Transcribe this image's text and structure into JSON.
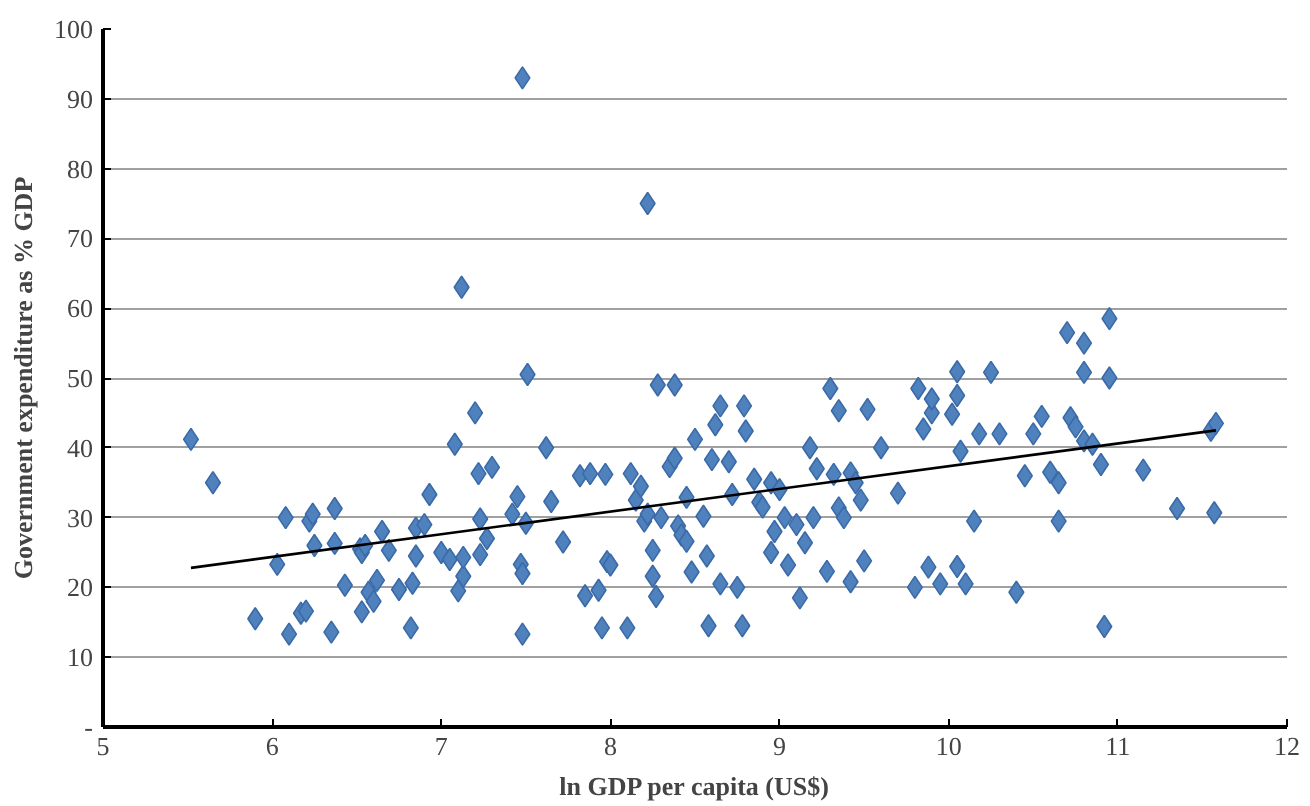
{
  "chart_data": {
    "type": "scatter",
    "xlabel": "ln GDP per capita (US$)",
    "ylabel": "Government expenditure as % GDP",
    "xlim": [
      5,
      12
    ],
    "xticks": [
      5,
      6,
      7,
      8,
      9,
      10,
      11,
      12
    ],
    "ylim": [
      0,
      100
    ],
    "yticks": [
      {
        "value": 0,
        "label": "-"
      },
      10,
      20,
      30,
      40,
      50,
      60,
      70,
      80,
      90,
      100
    ],
    "grid": "y",
    "series": [
      {
        "marker": "diamond",
        "color": "#4f81bd",
        "x": [
          5.52,
          5.65,
          5.9,
          6.03,
          6.08,
          6.1,
          6.17,
          6.2,
          6.22,
          6.24,
          6.25,
          6.35,
          6.37,
          6.37,
          6.43,
          6.52,
          6.53,
          6.53,
          6.55,
          6.57,
          6.6,
          6.62,
          6.65,
          6.69,
          6.75,
          6.82,
          6.83,
          6.85,
          6.85,
          6.9,
          6.93,
          7.0,
          7.05,
          7.08,
          7.1,
          7.13,
          7.13,
          7.2,
          7.22,
          7.23,
          7.23,
          7.27,
          7.3,
          7.42,
          7.45,
          7.47,
          7.48,
          7.48,
          7.5,
          7.51,
          7.62,
          7.65,
          7.72,
          7.82,
          7.85,
          7.88,
          7.93,
          7.95,
          7.97,
          7.98,
          8.0,
          8.1,
          8.12,
          8.15,
          8.18,
          8.2,
          8.22,
          8.25,
          8.25,
          8.27,
          8.28,
          8.3,
          8.38,
          8.35,
          8.38,
          8.4,
          8.42,
          8.45,
          8.45,
          8.48,
          8.5,
          8.55,
          8.57,
          8.58,
          8.6,
          8.62,
          8.65,
          8.65,
          8.7,
          8.72,
          8.75,
          8.78,
          8.79,
          8.8,
          8.85,
          8.88,
          8.9,
          8.95,
          8.95,
          8.97,
          9.0,
          9.03,
          9.05,
          9.1,
          9.12,
          9.15,
          9.18,
          9.2,
          9.22,
          9.28,
          9.3,
          9.32,
          9.35,
          9.35,
          9.38,
          9.42,
          9.42,
          9.45,
          9.48,
          9.5,
          9.52,
          9.6,
          9.7,
          9.8,
          9.82,
          9.85,
          9.88,
          9.9,
          9.9,
          9.95,
          10.05,
          10.07,
          10.15,
          10.18,
          10.25,
          10.3,
          10.4,
          10.45,
          10.5,
          10.55,
          10.6,
          10.65,
          10.65,
          10.7,
          10.72,
          10.75,
          10.8,
          10.8,
          10.8,
          10.85,
          10.9,
          10.92,
          10.95,
          10.95,
          11.15,
          11.35,
          11.55,
          11.58,
          11.57,
          7.12,
          8.22,
          7.48,
          10.05,
          10.02,
          10.1,
          10.05
        ],
        "values": [
          41.2,
          35,
          15.5,
          23.3,
          30,
          13.3,
          16.3,
          16.6,
          29.5,
          30.5,
          26,
          13.6,
          31.3,
          26.3,
          20.3,
          25.5,
          25,
          16.5,
          26,
          19.3,
          18,
          21,
          28,
          25.3,
          19.7,
          14.2,
          20.6,
          24.5,
          28.5,
          29,
          33.3,
          25,
          24,
          40.5,
          19.5,
          21.6,
          24.3,
          45,
          36.3,
          29.8,
          24.7,
          27,
          37.2,
          30.5,
          33,
          23.3,
          13.3,
          22,
          29.2,
          50.5,
          40,
          32.3,
          26.5,
          36,
          18.8,
          36.3,
          19.6,
          14.2,
          36.2,
          23.7,
          23.2,
          14.2,
          36.3,
          32.5,
          34.5,
          29.5,
          30.5,
          25.3,
          21.6,
          18.7,
          49,
          30,
          49,
          37.3,
          38.5,
          28.8,
          27.5,
          32.9,
          26.6,
          22.2,
          41.2,
          30.2,
          24.5,
          14.5,
          38.3,
          43.3,
          46,
          20.5,
          38,
          33.3,
          20,
          14.5,
          46,
          42.4,
          35.5,
          32.2,
          31.5,
          25,
          35,
          28,
          34,
          30,
          23.2,
          29,
          18.5,
          26.4,
          40,
          30,
          37,
          22.3,
          48.5,
          36.2,
          45.3,
          31.4,
          30,
          20.8,
          36.4,
          35,
          32.5,
          23.8,
          45.5,
          40,
          33.5,
          20,
          48.5,
          42.7,
          22.9,
          45,
          47,
          20.5,
          23,
          39.5,
          29.5,
          42,
          50.8,
          42,
          19.3,
          36,
          42,
          44.5,
          36.5,
          29.5,
          35,
          56.5,
          44.3,
          43,
          41,
          50.8,
          55,
          40.5,
          37.6,
          14.4,
          50,
          58.5,
          36.8,
          31.3,
          42.5,
          43.5,
          30.7,
          63,
          75,
          93,
          50.9,
          44.8,
          20.5,
          47.5
        ]
      },
      {
        "type": "line",
        "color": "#000000",
        "x": [
          5.52,
          11.58
        ],
        "values": [
          22.8,
          42.5
        ]
      }
    ]
  }
}
